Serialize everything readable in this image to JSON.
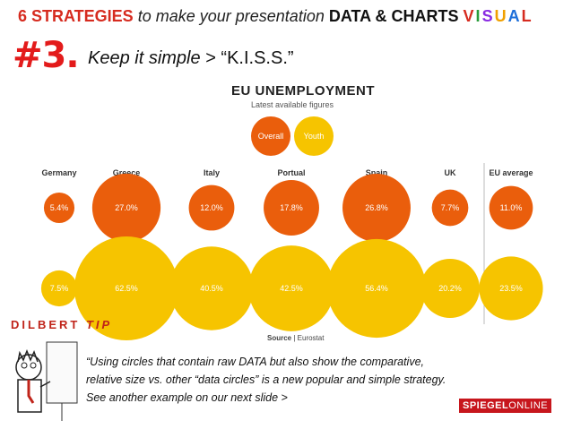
{
  "header": {
    "strategies": "6 STRATEGIES",
    "phrase": "to make your presentation",
    "data_charts": "DATA & CHARTS",
    "visual_letters": [
      "V",
      "I",
      "S",
      "U",
      "A",
      "L"
    ],
    "visual_colors": [
      "#d62b1f",
      "#2a9c3b",
      "#8a2be2",
      "#f0a000",
      "#1e6fd9",
      "#d62b1f"
    ]
  },
  "step": {
    "number": "#3.",
    "italic_text": "Keep it simple",
    "rest_text": "> “K.I.S.S.”"
  },
  "chart_data": {
    "type": "bubble",
    "title": "EU UNEMPLOYMENT",
    "subtitle": "Latest available figures",
    "legend": [
      {
        "label": "Overall",
        "color": "#ea5e0c"
      },
      {
        "label": "Youth",
        "color": "#f6c400"
      }
    ],
    "categories": [
      "Germany",
      "Greece",
      "Italy",
      "Portual",
      "Spain",
      "UK",
      "EU average"
    ],
    "series": [
      {
        "name": "Overall",
        "color": "#ea5e0c",
        "values": [
          5.4,
          27.0,
          12.0,
          17.8,
          26.8,
          7.7,
          11.0
        ],
        "labels": [
          "5.4%",
          "27.0%",
          "12.0%",
          "17.8%",
          "26.8%",
          "7.7%",
          "11.0%"
        ]
      },
      {
        "name": "Youth",
        "color": "#f6c400",
        "values": [
          7.5,
          62.5,
          40.5,
          42.5,
          56.4,
          20.2,
          23.5
        ],
        "labels": [
          "7.5%",
          "62.5%",
          "40.5%",
          "42.5%",
          "56.4%",
          "20.2%",
          "23.5%"
        ]
      }
    ]
  },
  "source": {
    "label": "Source",
    "value": "Eurostat"
  },
  "tip": {
    "dilbert": "DILBERT",
    "tip": "TIP",
    "quote": "“Using circles that contain raw DATA but also show the comparative, relative size vs. other “data circles” is a new popular and simple strategy. See another example on our next slide >"
  },
  "logo": {
    "spiegel": "SPIEGEL",
    "online": "ONLINE"
  }
}
